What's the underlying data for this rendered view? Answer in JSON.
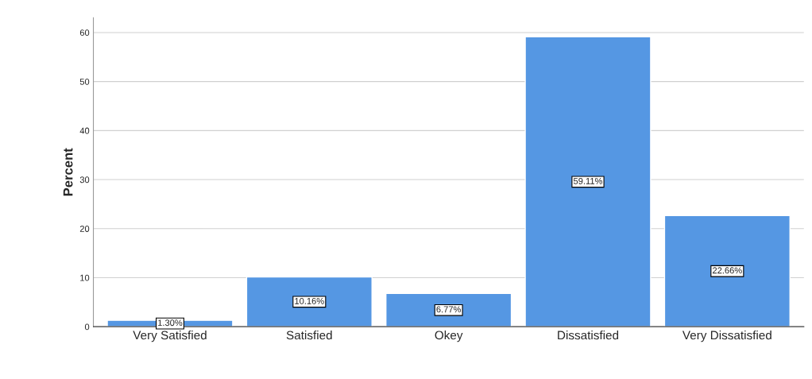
{
  "chart_data": {
    "type": "bar",
    "ylabel": "Percent",
    "categories": [
      "Very Satisfied",
      "Satisfied",
      "Okey",
      "Dissatisfied",
      "Very Dissatisfied"
    ],
    "values": [
      1.3,
      10.16,
      6.77,
      59.11,
      22.66
    ],
    "value_labels": [
      "1.30%",
      "10.16%",
      "6.77%",
      "59.11%",
      "22.66%"
    ],
    "color": "#5597e3",
    "ylim": [
      0,
      63
    ],
    "yticks": [
      0,
      10,
      20,
      30,
      40,
      50,
      60
    ],
    "grid": "y"
  }
}
